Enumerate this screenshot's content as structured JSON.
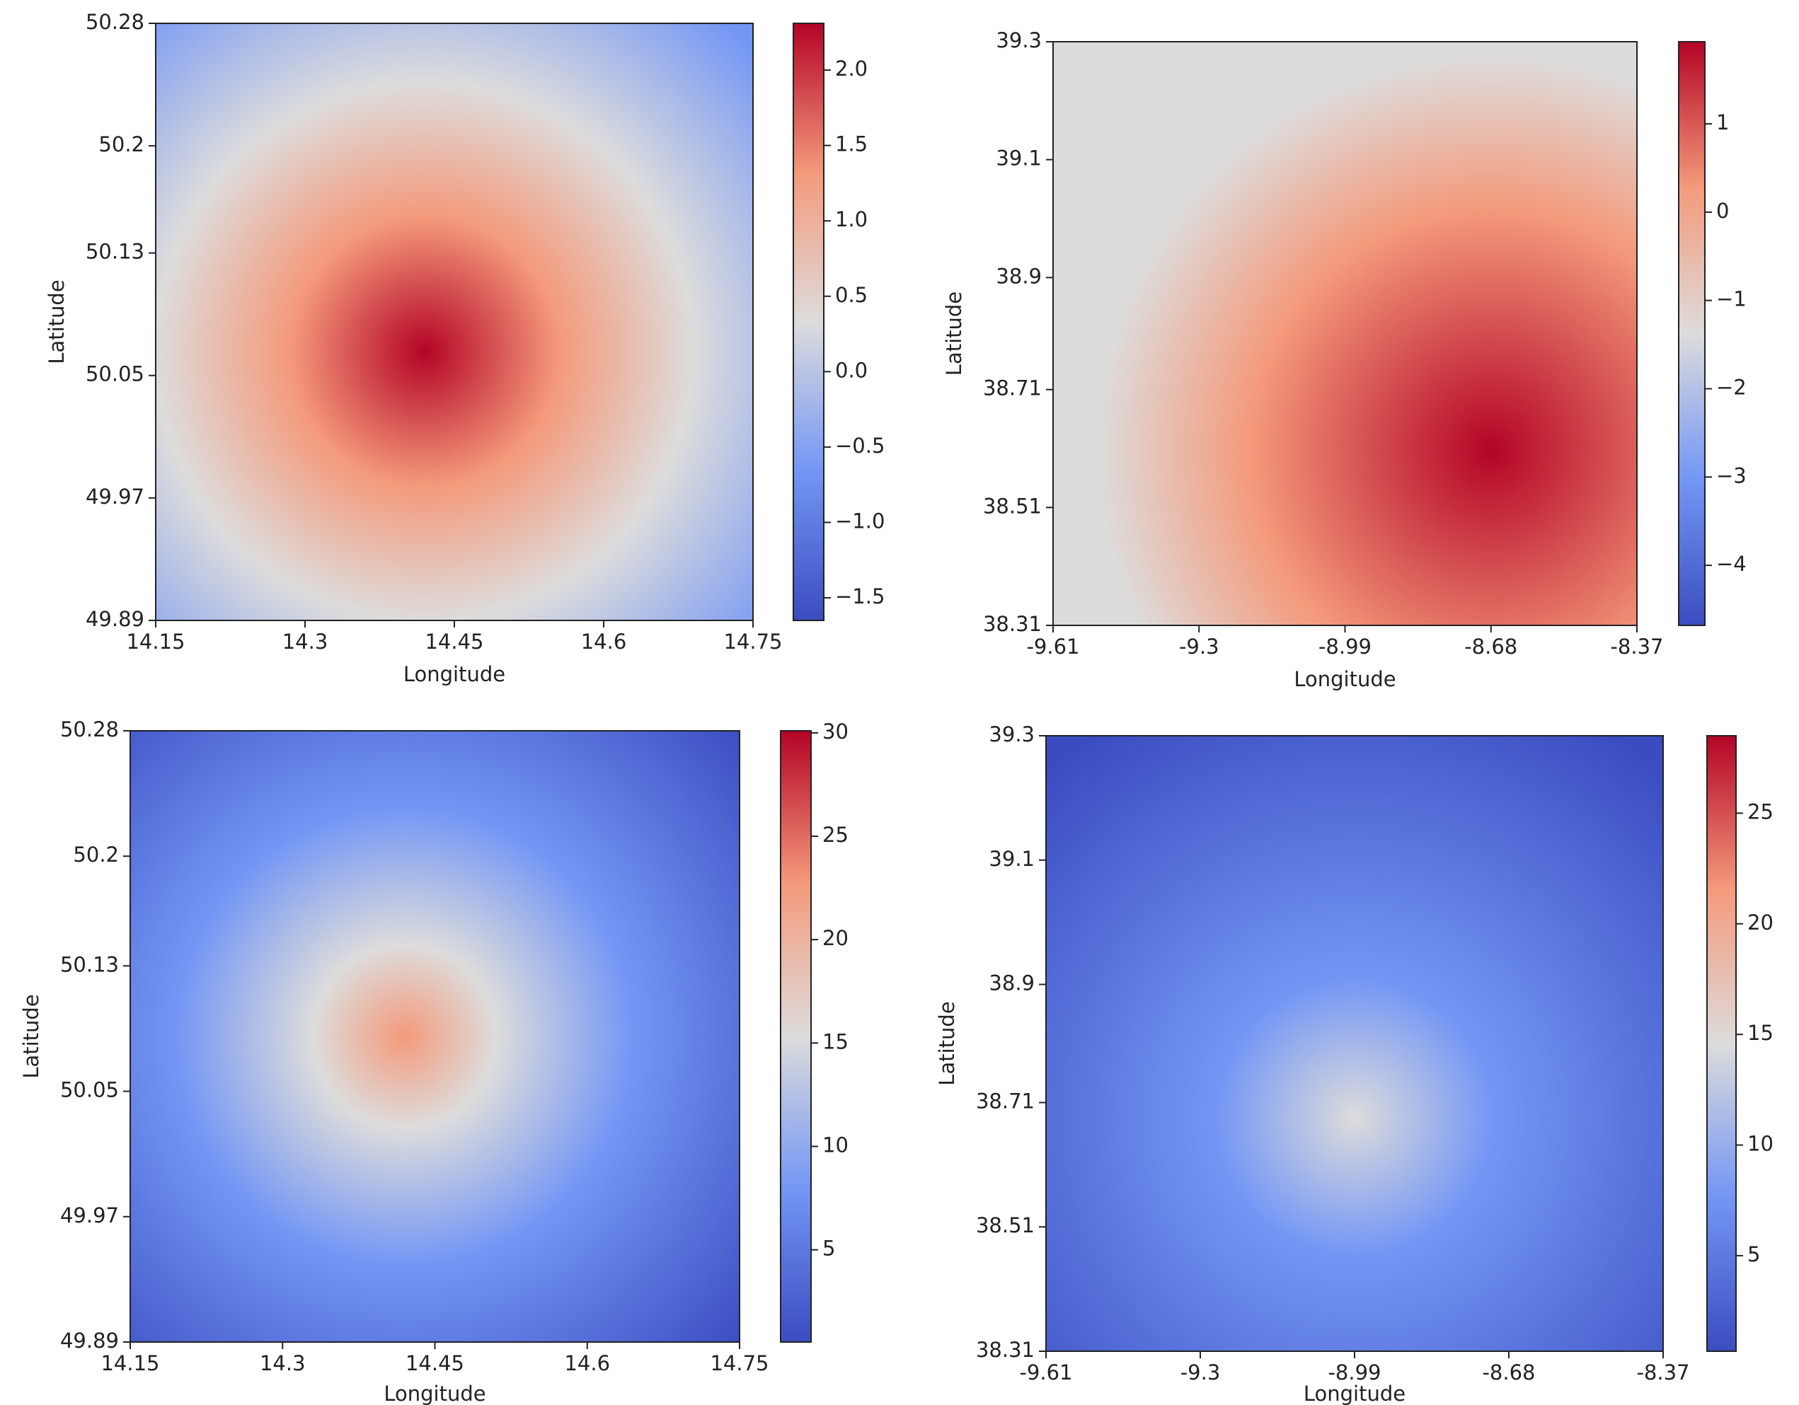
{
  "chart_data": [
    {
      "type": "heatmap",
      "xlabel": "Longitude",
      "ylabel": "Latitude",
      "xlim": [
        14.15,
        14.75
      ],
      "xticks": [
        14.15,
        14.3,
        14.45,
        14.6,
        14.75
      ],
      "ylim": [
        49.89,
        50.28
      ],
      "yticks": [
        49.89,
        49.97,
        50.05,
        50.13,
        50.2,
        50.28
      ],
      "colorbar_lim": [
        -1.65,
        2.31
      ],
      "colorbar_ticks": [
        {
          "value": -1.5,
          "label": "−1.5"
        },
        {
          "value": -1,
          "label": "−1.0"
        },
        {
          "value": -0.5,
          "label": "−0.5"
        },
        {
          "value": 0,
          "label": "0.0"
        },
        0.5,
        {
          "value": 1,
          "label": "1.0"
        },
        1.5,
        {
          "value": 2,
          "label": "2.0"
        }
      ],
      "colormap": [
        "#3b4cc0",
        "#7396f5",
        "#dddcdc",
        "#f49a7b",
        "#b40426"
      ]
    },
    {
      "type": "heatmap",
      "xlabel": "Longitude",
      "ylabel": "Latitude",
      "xlim": [
        -9.61,
        -8.37
      ],
      "xticks": [
        -9.61,
        -9.3,
        -8.99,
        -8.68,
        -8.37
      ],
      "ylim": [
        38.31,
        39.3
      ],
      "yticks": [
        38.31,
        38.51,
        38.71,
        38.9,
        39.1,
        39.3
      ],
      "colorbar_lim": [
        -4.68,
        1.93
      ],
      "colorbar_ticks": [
        {
          "value": -4,
          "label": "−4"
        },
        {
          "value": -3,
          "label": "−3"
        },
        {
          "value": -2,
          "label": "−2"
        },
        {
          "value": -1,
          "label": "−1"
        },
        0,
        1
      ],
      "colormap": [
        "#3b4cc0",
        "#7396f5",
        "#dddcdc",
        "#f49a7b",
        "#b40426"
      ]
    },
    {
      "type": "heatmap",
      "xlabel": "Longitude",
      "ylabel": "Latitude",
      "xlim": [
        14.15,
        14.75
      ],
      "xticks": [
        14.15,
        14.3,
        14.45,
        14.6,
        14.75
      ],
      "ylim": [
        49.89,
        50.28
      ],
      "yticks": [
        49.89,
        49.97,
        50.05,
        50.13,
        50.2,
        50.28
      ],
      "colorbar_lim": [
        0.54,
        30.1
      ],
      "colorbar_ticks": [
        5,
        10,
        15,
        20,
        25,
        30
      ],
      "colormap": [
        "#3b4cc0",
        "#7396f5",
        "#dddcdc",
        "#f49a7b",
        "#b40426"
      ]
    },
    {
      "type": "heatmap",
      "xlabel": "Longitude",
      "ylabel": "Latitude",
      "xlim": [
        -9.61,
        -8.37
      ],
      "xticks": [
        -9.61,
        -9.3,
        -8.99,
        -8.68,
        -8.37
      ],
      "ylim": [
        38.31,
        39.3
      ],
      "yticks": [
        38.31,
        38.51,
        38.71,
        38.9,
        39.1,
        39.3
      ],
      "colorbar_lim": [
        0.68,
        28.5
      ],
      "colorbar_ticks": [
        5,
        10,
        15,
        20,
        25
      ],
      "colormap": [
        "#3b4cc0",
        "#7396f5",
        "#dddcdc",
        "#f49a7b",
        "#b40426"
      ]
    }
  ]
}
